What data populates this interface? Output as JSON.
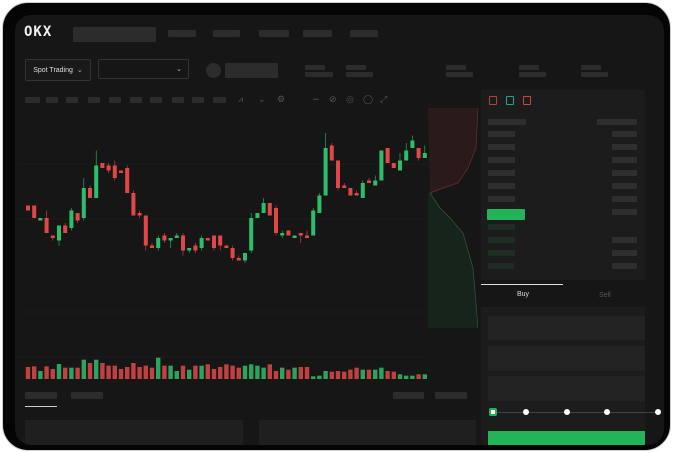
{
  "header": {
    "brand": "OKX"
  },
  "market": {
    "type_label": "Spot Trading"
  },
  "trade": {
    "tabs": [
      {
        "label": "Buy"
      },
      {
        "label": "Sell"
      }
    ],
    "slider_percent": 0
  },
  "colors": {
    "up": "#2ebd6b",
    "down": "#e04848",
    "buy_button": "#23b45a"
  },
  "chart_data": {
    "type": "candlestick",
    "ohlc": [
      [
        67,
        65,
        67,
        65
      ],
      [
        67,
        62,
        67,
        62
      ],
      [
        61,
        62,
        62,
        61
      ],
      [
        62,
        56,
        65,
        56
      ],
      [
        55,
        54,
        55,
        53
      ],
      [
        53,
        59,
        59,
        51
      ],
      [
        59,
        56,
        60,
        56
      ],
      [
        58,
        65,
        66,
        57
      ],
      [
        64,
        61,
        64,
        60
      ],
      [
        62,
        74,
        78,
        61
      ],
      [
        74,
        70,
        75,
        70
      ],
      [
        70,
        83,
        89,
        70
      ],
      [
        84,
        82,
        84,
        82
      ],
      [
        83,
        81,
        84,
        80
      ],
      [
        83,
        78,
        85,
        77
      ],
      [
        81,
        80,
        81,
        80
      ],
      [
        82,
        72,
        83,
        72
      ],
      [
        72,
        63,
        73,
        63
      ],
      [
        64,
        63,
        65,
        62
      ],
      [
        63,
        51,
        63,
        49
      ],
      [
        51,
        50,
        52,
        50
      ],
      [
        50,
        54,
        55,
        49
      ],
      [
        55,
        53,
        56,
        52
      ],
      [
        53,
        54,
        54,
        50
      ],
      [
        54,
        55,
        56,
        54
      ],
      [
        55,
        49,
        56,
        47
      ],
      [
        49,
        50,
        50,
        48
      ],
      [
        51,
        49,
        52,
        48
      ],
      [
        50,
        54,
        55,
        49
      ],
      [
        54,
        53,
        54,
        53
      ],
      [
        55,
        50,
        55,
        49
      ],
      [
        55,
        51,
        55,
        49
      ],
      [
        51,
        50,
        51,
        50
      ],
      [
        50,
        46,
        51,
        45
      ],
      [
        46,
        45,
        47,
        45
      ],
      [
        45,
        48,
        48,
        44
      ],
      [
        49,
        62,
        64,
        48
      ],
      [
        62,
        64,
        64,
        62
      ],
      [
        64,
        68,
        70,
        64
      ],
      [
        68,
        63,
        68,
        63
      ],
      [
        66,
        56,
        67,
        55
      ],
      [
        55,
        56,
        57,
        54
      ],
      [
        57,
        55,
        57,
        55
      ],
      [
        54,
        55,
        55,
        54
      ],
      [
        56,
        55,
        56,
        52
      ],
      [
        55,
        54,
        57,
        54
      ],
      [
        55,
        65,
        66,
        55
      ],
      [
        64,
        71,
        72,
        64
      ],
      [
        71,
        90,
        96,
        71
      ],
      [
        91,
        85,
        92,
        85
      ],
      [
        85,
        74,
        85,
        73
      ],
      [
        75,
        74,
        76,
        74
      ],
      [
        74,
        71,
        74,
        71
      ],
      [
        72,
        71,
        73,
        71
      ],
      [
        70,
        76,
        77,
        70
      ],
      [
        77,
        76,
        78,
        76
      ],
      [
        75,
        77,
        79,
        75
      ],
      [
        77,
        89,
        89,
        77
      ],
      [
        90,
        84,
        90,
        84
      ],
      [
        84,
        82,
        84,
        82
      ],
      [
        81,
        85,
        88,
        81
      ],
      [
        85,
        89,
        92,
        85
      ],
      [
        90,
        93,
        95,
        90
      ],
      [
        90,
        86,
        90,
        85
      ],
      [
        86,
        88,
        91,
        86
      ]
    ],
    "volume": [
      36,
      38,
      24,
      38,
      30,
      45,
      34,
      34,
      34,
      58,
      48,
      58,
      48,
      40,
      40,
      30,
      36,
      48,
      36,
      40,
      34,
      64,
      40,
      40,
      24,
      40,
      28,
      40,
      40,
      44,
      30,
      36,
      44,
      40,
      34,
      40,
      44,
      40,
      34,
      44,
      24,
      34,
      28,
      34,
      36,
      36,
      8,
      10,
      24,
      22,
      24,
      22,
      28,
      34,
      28,
      28,
      28,
      34,
      24,
      22,
      14,
      10,
      10,
      14,
      14
    ],
    "ylim": [
      0,
      100
    ]
  }
}
